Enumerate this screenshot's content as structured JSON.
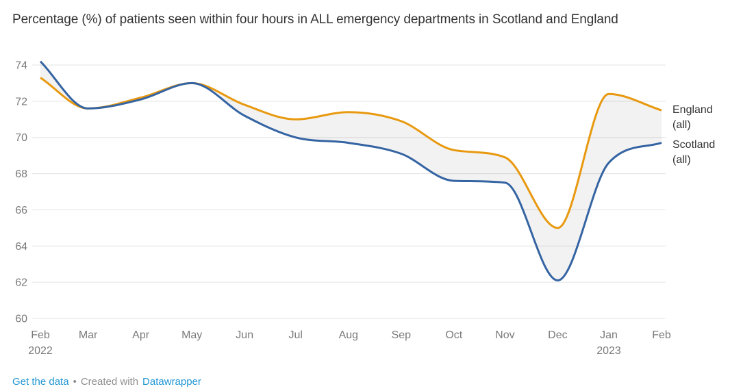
{
  "header": {
    "title": "Percentage (%) of patients seen within four hours in ALL emergency departments in Scotland and England"
  },
  "chart_data": {
    "type": "line",
    "title": "Percentage (%) of patients seen within four hours in ALL emergency departments in Scotland and England",
    "x_categories": [
      "Feb 2022",
      "Mar 2022",
      "Apr 2022",
      "May 2022",
      "Jun 2022",
      "Jul 2022",
      "Aug 2022",
      "Sep 2022",
      "Oct 2022",
      "Nov 2022",
      "Dec 2022",
      "Jan 2023",
      "Feb 2023"
    ],
    "x_tick_labels": [
      {
        "text": "Feb",
        "sub": "2022"
      },
      {
        "text": "Mar"
      },
      {
        "text": "Apr"
      },
      {
        "text": "May"
      },
      {
        "text": "Jun"
      },
      {
        "text": "Jul"
      },
      {
        "text": "Aug"
      },
      {
        "text": "Sep"
      },
      {
        "text": "Oct"
      },
      {
        "text": "Nov"
      },
      {
        "text": "Dec"
      },
      {
        "text": "Jan",
        "sub": "2023"
      },
      {
        "text": "Feb"
      }
    ],
    "x_day_offsets": [
      0,
      28,
      59,
      89,
      120,
      150,
      181,
      212,
      243,
      273,
      304,
      334,
      365
    ],
    "series": [
      {
        "name": "England (all)",
        "color": "#E8990F",
        "values": [
          73.3,
          71.6,
          72.2,
          73.0,
          71.8,
          71.0,
          71.4,
          70.9,
          69.3,
          68.9,
          65.0,
          72.4,
          71.5
        ]
      },
      {
        "name": "Scotland (all)",
        "color": "#3564A3",
        "values": [
          74.2,
          71.6,
          72.1,
          73.0,
          71.2,
          70.0,
          69.7,
          69.1,
          67.6,
          67.5,
          62.1,
          68.6,
          69.7
        ]
      }
    ],
    "yticks": [
      60,
      62,
      64,
      66,
      68,
      70,
      72,
      74
    ],
    "ylim": [
      60,
      74.5
    ],
    "ylabel": "",
    "xlabel": "",
    "grid": "horizontal",
    "band_fill_between_series": true,
    "legend_position": "labels-at-line-ends"
  },
  "legend": {
    "items": [
      {
        "line1": "England",
        "line2": "(all)",
        "series": "England (all)"
      },
      {
        "line1": "Scotland",
        "line2": "(all)",
        "series": "Scotland (all)"
      }
    ]
  },
  "footer": {
    "get_data_link": "Get the data",
    "separator": "•",
    "created_with": "Created with",
    "datawrapper_link": "Datawrapper"
  },
  "colors": {
    "england": "#E8990F",
    "scotland": "#3564A3",
    "grid": "#e3e3e3",
    "tick_label": "#7a7a7a",
    "title_text": "#333333",
    "footer_text": "#8e8e8e",
    "footer_link": "#2196d3",
    "band": "rgba(0,0,0,0.05)"
  }
}
